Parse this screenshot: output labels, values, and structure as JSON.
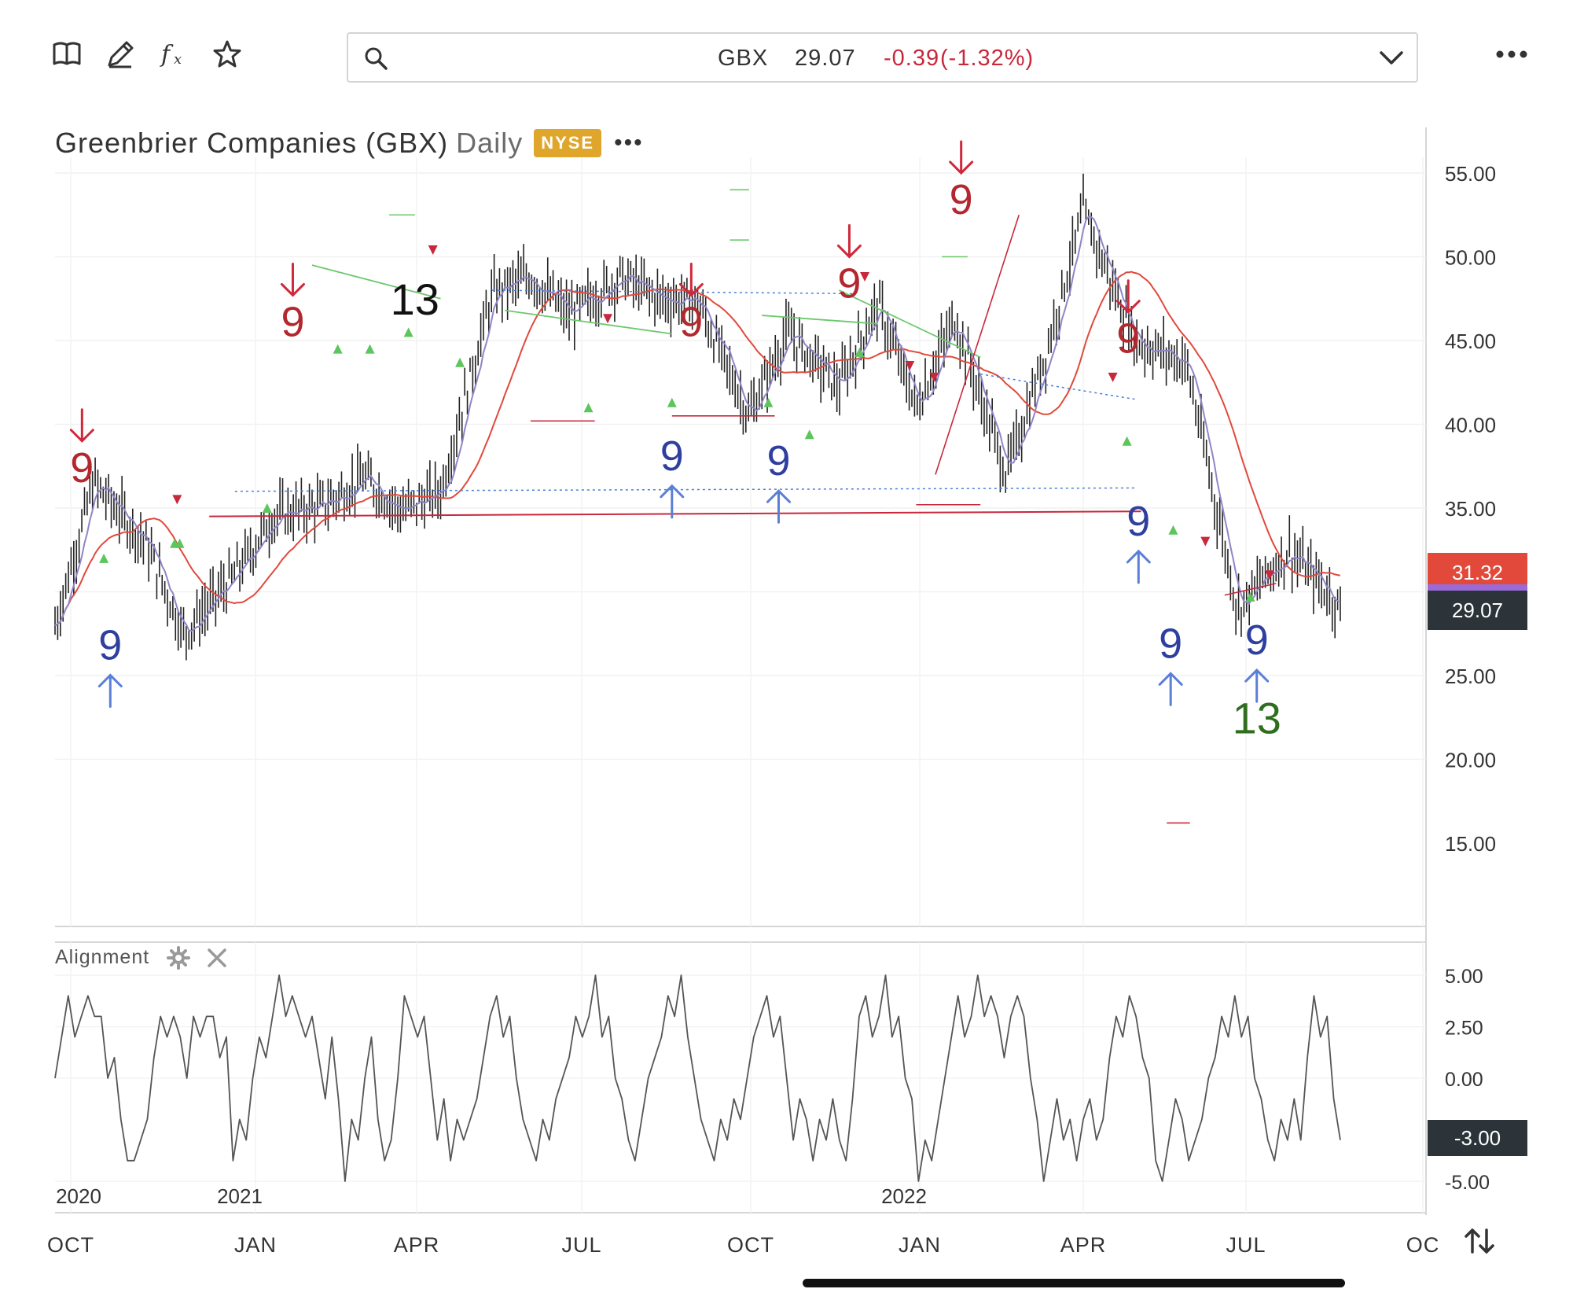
{
  "toolbar": {
    "icons": [
      "book-icon",
      "pencil-icon",
      "function-icon",
      "star-icon"
    ],
    "more_icon": "ellipsis-icon"
  },
  "search": {
    "ticker": "GBX",
    "last": "29.07",
    "change": "-0.39",
    "change_pct": "(-1.32%)",
    "icon": "search-icon",
    "dropdown_icon": "chevron-down-icon"
  },
  "chart_header": {
    "name": "Greenbrier Companies (GBX)",
    "period": "Daily",
    "exchange": "NYSE",
    "more": "•••"
  },
  "colors": {
    "down_red": "#c8283c",
    "sell_signal": "#b3272e",
    "buy_signal": "#2f3f9f",
    "buy_arrow": "#5b7fd6",
    "green_marker": "#5cc55c",
    "countdown_13_green": "#2f6e1e",
    "ma_red": "#e04a3c",
    "ma_purple": "#8f86c8",
    "dark_tag": "#2c3439",
    "red_tag": "#e2493b",
    "mid_band_purple": "#9a6ad6"
  },
  "chart_data": [
    {
      "type": "bar",
      "title": "Greenbrier Companies (GBX) Daily",
      "description": "OHLC price bars with moving averages and TD Sequential 9/13 setup counts",
      "ylim": [
        10,
        57
      ],
      "y_ticks": [
        "55.00",
        "50.00",
        "45.00",
        "40.00",
        "35.00",
        "30.00",
        "25.00",
        "20.00",
        "15.00"
      ],
      "x_ticks": [
        "OCT",
        "JAN",
        "APR",
        "JUL",
        "OCT",
        "JAN",
        "APR",
        "JUL",
        "OC"
      ],
      "year_labels": [
        "2020",
        "2021",
        "2022"
      ],
      "price_tags": {
        "upper": "31.32",
        "last": "29.07"
      },
      "series": [
        {
          "name": "close",
          "x": [
            0,
            3,
            7,
            10,
            14,
            17,
            21,
            24,
            27,
            30,
            34,
            37,
            40,
            44,
            47,
            50,
            54,
            57,
            61,
            64,
            67,
            70,
            74,
            77,
            80,
            84,
            88,
            92,
            96,
            100
          ],
          "values": [
            28,
            36.5,
            33,
            27.5,
            31,
            34.5,
            35.2,
            36.8,
            34.8,
            36,
            47.8,
            48.8,
            46.5,
            48.8,
            47.5,
            47.3,
            40.5,
            45.5,
            42.2,
            47.2,
            41,
            46.3,
            37,
            44,
            52.7,
            45,
            43.7,
            29,
            32.5,
            29.07
          ]
        }
      ],
      "setup_labels": [
        {
          "text": "9",
          "kind": "sell",
          "x": 2.1,
          "y": 37.5
        },
        {
          "text": "9",
          "kind": "buy",
          "x": 4.3,
          "y": 26.9
        },
        {
          "text": "9",
          "kind": "sell",
          "x": 18.5,
          "y": 46.2
        },
        {
          "text": "13",
          "kind": "countdown",
          "x": 28,
          "y": 47.5
        },
        {
          "text": "9",
          "kind": "sell",
          "x": 49.5,
          "y": 46.2
        },
        {
          "text": "9",
          "kind": "buy",
          "x": 48,
          "y": 38.2
        },
        {
          "text": "9",
          "kind": "buy",
          "x": 56.3,
          "y": 37.9
        },
        {
          "text": "9",
          "kind": "sell",
          "x": 61.8,
          "y": 48.5
        },
        {
          "text": "9",
          "kind": "sell",
          "x": 70.5,
          "y": 53.5
        },
        {
          "text": "9",
          "kind": "sell",
          "x": 83.5,
          "y": 45.2
        },
        {
          "text": "9",
          "kind": "buy",
          "x": 84.3,
          "y": 34.3
        },
        {
          "text": "9",
          "kind": "buy",
          "x": 86.8,
          "y": 27
        },
        {
          "text": "9",
          "kind": "buy",
          "x": 93.5,
          "y": 27.2
        },
        {
          "text": "13",
          "kind": "countdown-buy",
          "x": 93.5,
          "y": 22.5
        }
      ]
    },
    {
      "type": "line",
      "title": "Alignment",
      "ylim": [
        -6,
        6
      ],
      "y_ticks": [
        "5.00",
        "2.50",
        "0.00",
        "-5.00"
      ],
      "current_value": "-3.00",
      "values": [
        0,
        2,
        4,
        2,
        3,
        4,
        3,
        3,
        0,
        1,
        -2,
        -4,
        -4,
        -3,
        -2,
        1,
        3,
        2,
        3,
        2,
        0,
        3,
        2,
        3,
        3,
        1,
        2,
        -4,
        -2,
        -3,
        0,
        2,
        1,
        3,
        5,
        3,
        4,
        3,
        2,
        3,
        1,
        -1,
        2,
        -1,
        -5,
        -2,
        -3,
        0,
        2,
        -2,
        -4,
        -3,
        0,
        4,
        3,
        2,
        3,
        0,
        -3,
        -1,
        -4,
        -2,
        -3,
        -2,
        -1,
        1,
        3,
        4,
        2,
        3,
        0,
        -2,
        -3,
        -4,
        -2,
        -3,
        -1,
        0,
        1,
        3,
        2,
        3,
        5,
        2,
        3,
        0,
        -1,
        -3,
        -4,
        -2,
        0,
        1,
        2,
        4,
        3,
        5,
        2,
        0,
        -2,
        -3,
        -4,
        -2,
        -3,
        -1,
        -2,
        0,
        2,
        3,
        4,
        2,
        3,
        0,
        -3,
        -1,
        -2,
        -4,
        -2,
        -3,
        -1,
        -3,
        -4,
        -1,
        3,
        4,
        2,
        3,
        5,
        2,
        3,
        0,
        -1,
        -5,
        -3,
        -4,
        -2,
        0,
        2,
        4,
        2,
        3,
        5,
        3,
        4,
        3,
        1,
        3,
        4,
        3,
        0,
        -2,
        -5,
        -3,
        -1,
        -3,
        -2,
        -4,
        -2,
        -1,
        -3,
        -2,
        1,
        3,
        2,
        4,
        3,
        1,
        0,
        -4,
        -5,
        -3,
        -1,
        -2,
        -4,
        -3,
        -2,
        0,
        1,
        3,
        2,
        4,
        2,
        3,
        0,
        -1,
        -3,
        -4,
        -2,
        -3,
        -1,
        -3,
        1,
        4,
        2,
        3,
        -1,
        -3
      ]
    }
  ],
  "indicator_panel": {
    "label": "Alignment",
    "settings_icon": "gear-icon",
    "close_icon": "close-icon"
  },
  "swap_axis_icon": "swap-vertical-icon"
}
